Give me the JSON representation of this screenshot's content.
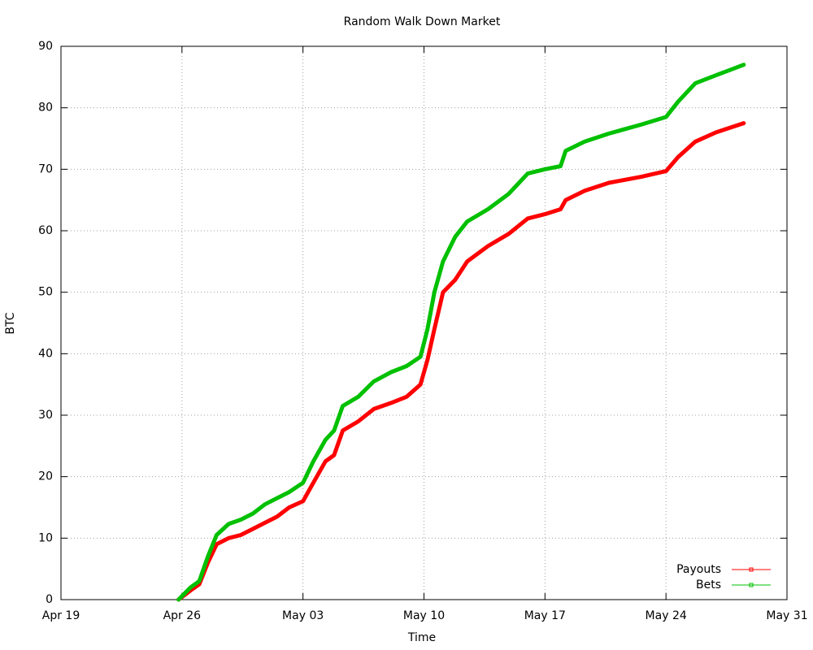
{
  "chart_data": {
    "type": "line",
    "title": "Random Walk Down Market",
    "x_label": "Time",
    "y_label": "BTC",
    "x": [
      6.8,
      7.5,
      8,
      8.5,
      9,
      9.7,
      10.4,
      11.1,
      11.8,
      12.5,
      13.2,
      14,
      14.6,
      15.3,
      15.8,
      16.3,
      17.2,
      18.1,
      19.1,
      20,
      20.8,
      21.2,
      21.6,
      22.1,
      22.8,
      23.5,
      24.7,
      25.9,
      27,
      28,
      28.9,
      29.2,
      30.3,
      31.7,
      33.6,
      35,
      35.7,
      36.7,
      37.9,
      39.5
    ],
    "series": [
      {
        "name": "Payouts",
        "color": "#ff0000",
        "values": [
          0,
          1.5,
          2.5,
          6,
          9,
          10,
          10.5,
          11.5,
          12.5,
          13.5,
          15,
          16,
          19,
          22.5,
          23.5,
          27.5,
          29,
          31,
          32,
          33,
          35,
          39,
          44,
          50,
          52,
          55,
          57.5,
          59.5,
          62,
          62.7,
          63.5,
          65,
          66.5,
          67.8,
          68.8,
          69.7,
          72,
          74.5,
          76,
          77.5
        ]
      },
      {
        "name": "Bets",
        "color": "#00c000",
        "values": [
          0,
          2,
          3,
          7,
          10.5,
          12.3,
          13,
          14,
          15.5,
          16.5,
          17.5,
          19,
          22.5,
          26,
          27.5,
          31.5,
          33,
          35.5,
          37,
          38,
          39.5,
          44,
          50,
          55,
          59,
          61.5,
          63.5,
          66,
          69.3,
          70,
          70.5,
          73,
          74.5,
          75.8,
          77.3,
          78.5,
          81,
          84,
          85.3,
          87
        ]
      }
    ],
    "xlim": [
      0,
      42
    ],
    "xticks": [
      {
        "value": 0,
        "label": "Apr 19"
      },
      {
        "value": 7,
        "label": "Apr 26"
      },
      {
        "value": 14,
        "label": "May 03"
      },
      {
        "value": 21,
        "label": "May 10"
      },
      {
        "value": 28,
        "label": "May 17"
      },
      {
        "value": 35,
        "label": "May 24"
      },
      {
        "value": 42,
        "label": "May 31"
      }
    ],
    "ylim": [
      0,
      90
    ],
    "yticks": [
      0,
      10,
      20,
      30,
      40,
      50,
      60,
      70,
      80,
      90
    ],
    "grid": true,
    "legend": "bottom-right"
  }
}
